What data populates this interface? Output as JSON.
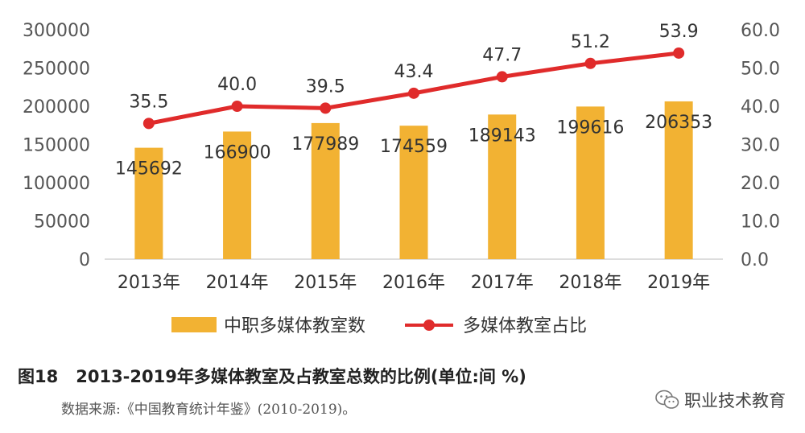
{
  "chart_data": {
    "type": "bar",
    "categories": [
      "2013年",
      "2014年",
      "2015年",
      "2016年",
      "2017年",
      "2018年",
      "2019年"
    ],
    "series": [
      {
        "name": "中职多媒体教室数",
        "type": "bar",
        "axis": "left",
        "values": [
          145692,
          166900,
          177989,
          174559,
          189143,
          199616,
          206353
        ],
        "labels": [
          "145692",
          "166900",
          "177989",
          "174559",
          "189143",
          "199616",
          "206353"
        ],
        "color": "#F2B233"
      },
      {
        "name": "多媒体教室占比",
        "type": "line",
        "axis": "right",
        "values": [
          35.5,
          40.0,
          39.5,
          43.4,
          47.7,
          51.2,
          53.9
        ],
        "labels": [
          "35.5",
          "40.0",
          "39.5",
          "43.4",
          "47.7",
          "51.2",
          "53.9"
        ],
        "color": "#E02B2B"
      }
    ],
    "y_left": {
      "range": [
        0,
        300000
      ],
      "ticks": [
        "0",
        "50000",
        "100000",
        "150000",
        "200000",
        "250000",
        "300000"
      ]
    },
    "y_right": {
      "range": [
        0,
        60
      ],
      "ticks": [
        "0.0",
        "10.0",
        "20.0",
        "30.0",
        "40.0",
        "50.0",
        "60.0"
      ]
    },
    "grid": false,
    "legend": "bottom"
  },
  "caption": {
    "figure_number": "图18",
    "text": "2013-2019年多媒体教室及占教室总数的比例(单位:间 %)"
  },
  "source": "数据来源:《中国教育统计年鉴》(2010-2019)。",
  "watermark": {
    "text": "职业技术教育",
    "icon": "wechat-icon"
  }
}
